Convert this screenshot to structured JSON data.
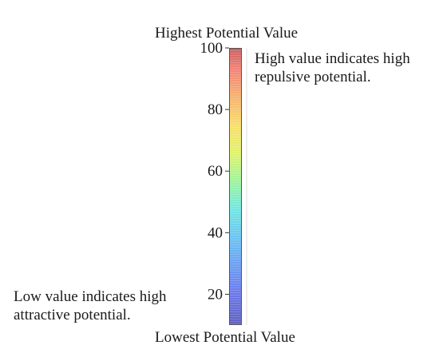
{
  "colorbar": {
    "top_label": "Highest Potential Value",
    "bottom_label": "Lowest Potential Value",
    "high_note": [
      "High value indicates high",
      "repulsive potential."
    ],
    "low_note": [
      "Low value indicates high",
      "attractive potential."
    ],
    "colormap": "jet",
    "range": [
      10,
      100
    ],
    "ticks": [
      100,
      80,
      60,
      40,
      20
    ],
    "tick_labels": [
      "100",
      "80",
      "60",
      "40",
      "20"
    ]
  }
}
